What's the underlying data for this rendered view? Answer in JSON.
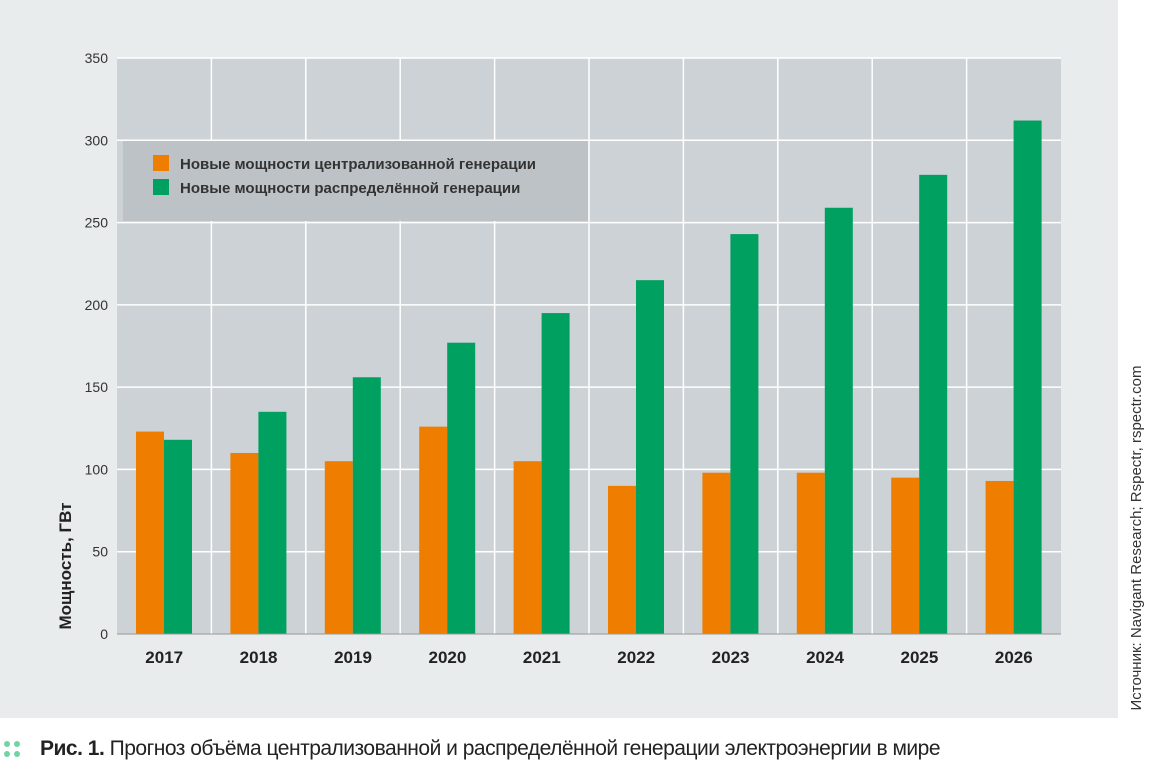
{
  "chart_data": {
    "type": "bar",
    "title": "",
    "xlabel": "",
    "ylabel": "Мощность, ГВт",
    "ylim": [
      0,
      350
    ],
    "yticks": [
      0,
      50,
      100,
      150,
      200,
      250,
      300,
      350
    ],
    "grid": true,
    "legend_position": "top-left",
    "categories": [
      "2017",
      "2018",
      "2019",
      "2020",
      "2021",
      "2022",
      "2023",
      "2024",
      "2025",
      "2026"
    ],
    "series": [
      {
        "name": "Новые мощности централизованной генерации",
        "color": "#ee7d00",
        "values": [
          123,
          110,
          105,
          126,
          105,
          90,
          98,
          98,
          95,
          93
        ]
      },
      {
        "name": "Новые мощности распределённой генерации",
        "color": "#00a060",
        "values": [
          118,
          135,
          156,
          177,
          195,
          215,
          243,
          259,
          279,
          312
        ]
      }
    ]
  },
  "source_note": "Источник: Navigant Research; Rspectr, rspectr.com",
  "caption": {
    "label": "Рис. 1.",
    "text": "Прогноз объёма централизованной и распределённой генерации электроэнергии в мире"
  },
  "colors": {
    "plot_background": "#ccd2d6",
    "panel_background": "#e8ecec",
    "legend_background": "#bcc2c5",
    "grid": "#ffffff",
    "accent_dots": "#6fd5a4"
  }
}
